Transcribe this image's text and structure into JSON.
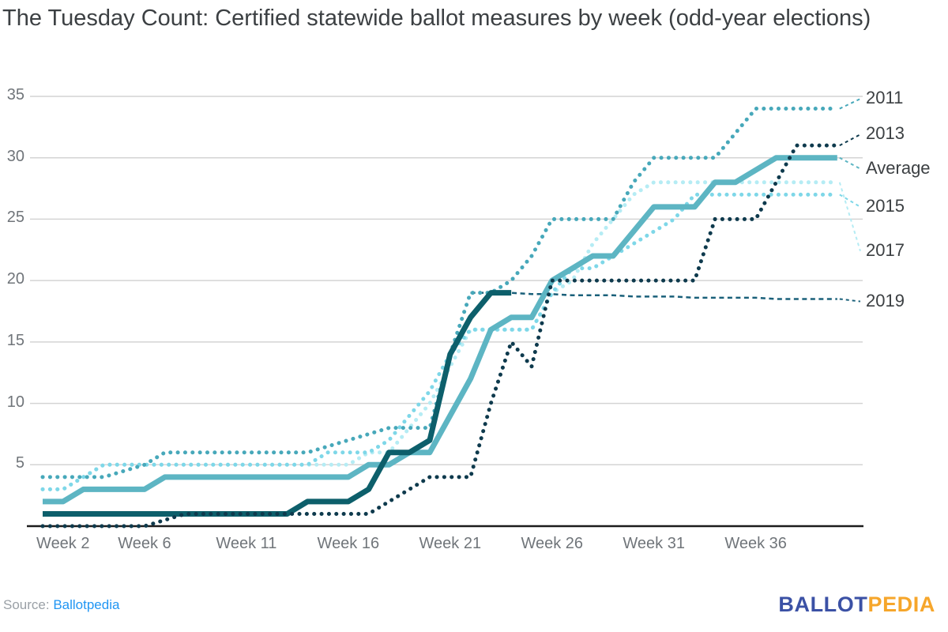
{
  "header": {
    "title": "The Tuesday Count: Certified statewide ballot measures by week (odd-year elections)"
  },
  "footer": {
    "source_label": "Source:",
    "source_link_text": "Ballotpedia",
    "source_link_color": "#2196f3",
    "logo_part1": "BALLOT",
    "logo_part2": "PEDIA",
    "logo_blue": "#3b51a5",
    "logo_orange": "#f6a62b"
  },
  "chart_data": {
    "type": "line",
    "title": "The Tuesday Count: Certified statewide ballot measures by week (odd-year elections)",
    "xlabel": "",
    "ylabel": "",
    "ylim": [
      0,
      35
    ],
    "grid": "horizontal",
    "legend_position": "right-edge-labels",
    "yticks": [
      5,
      10,
      15,
      20,
      25,
      30,
      35
    ],
    "xticks": [
      {
        "week": 2,
        "label": "Week 2"
      },
      {
        "week": 6,
        "label": "Week 6"
      },
      {
        "week": 11,
        "label": "Week 11"
      },
      {
        "week": 16,
        "label": "Week 16"
      },
      {
        "week": 21,
        "label": "Week 21"
      },
      {
        "week": 26,
        "label": "Week 26"
      },
      {
        "week": 31,
        "label": "Week 31"
      },
      {
        "week": 36,
        "label": "Week 36"
      }
    ],
    "x_weeks": [
      1,
      2,
      3,
      4,
      5,
      6,
      7,
      8,
      9,
      10,
      11,
      12,
      13,
      14,
      15,
      16,
      17,
      18,
      19,
      20,
      21,
      22,
      23,
      24,
      25,
      26,
      27,
      28,
      29,
      30,
      31,
      32,
      33,
      34,
      35,
      36,
      37,
      38,
      39,
      40
    ],
    "series": [
      {
        "id": "2019",
        "name": "2019",
        "end_label": "2019",
        "end_label_value": 18.3,
        "color": "#1a607a",
        "style": "dashed",
        "width": 2.5,
        "values": [
          null,
          null,
          null,
          null,
          null,
          null,
          null,
          null,
          null,
          null,
          null,
          null,
          null,
          null,
          null,
          null,
          null,
          null,
          null,
          null,
          null,
          19,
          19,
          19,
          18.9,
          18.9,
          18.8,
          18.8,
          18.8,
          18.7,
          18.7,
          18.7,
          18.6,
          18.6,
          18.6,
          18.6,
          18.5,
          18.5,
          18.5,
          18.5
        ]
      },
      {
        "id": "2017",
        "name": "2017",
        "end_label": "2017",
        "end_label_value": 22.4,
        "color": "#b5ecf4",
        "style": "dotted",
        "width": 5,
        "values": [
          3,
          3,
          4,
          5,
          5,
          5,
          5,
          5,
          5,
          5,
          5,
          5,
          5,
          5,
          5,
          5,
          6,
          6,
          8,
          10,
          13,
          16,
          16,
          16,
          16,
          19,
          20,
          23,
          25,
          27,
          28,
          28,
          28,
          28,
          28,
          28,
          28,
          28,
          28,
          28
        ]
      },
      {
        "id": "2015",
        "name": "2015",
        "end_label": "2015",
        "end_label_value": 26,
        "color": "#7ed7e8",
        "style": "dotted",
        "width": 5,
        "values": [
          3,
          3,
          4,
          5,
          5,
          5,
          5,
          5,
          5,
          5,
          5,
          5,
          5,
          5,
          6,
          6,
          6,
          7,
          9,
          11,
          14,
          16,
          16,
          16,
          16,
          19,
          21,
          21,
          22,
          23,
          24,
          25,
          27,
          27,
          27,
          27,
          27,
          27,
          27,
          27
        ]
      },
      {
        "id": "2011",
        "name": "2011",
        "end_label": "2011",
        "end_label_value": 34.8,
        "color": "#47a8ba",
        "style": "dotted",
        "width": 5,
        "values": [
          4,
          4,
          4,
          4,
          4.5,
          5,
          6,
          6,
          6,
          6,
          6,
          6,
          6,
          6,
          6.5,
          7,
          7.5,
          8,
          8,
          8,
          14,
          19,
          19,
          20,
          22,
          25,
          25,
          25,
          25,
          28,
          30,
          30,
          30,
          30,
          32,
          34,
          34,
          34,
          34,
          34
        ]
      },
      {
        "id": "average",
        "name": "Average",
        "end_label": "Average",
        "end_label_value": 29.1,
        "color": "#5db5c3",
        "style": "solid",
        "width": 7,
        "values": [
          2,
          2,
          3,
          3,
          3,
          3,
          4,
          4,
          4,
          4,
          4,
          4,
          4,
          4,
          4,
          4,
          5,
          5,
          6,
          6,
          9,
          12,
          16,
          17,
          17,
          20,
          21,
          22,
          22,
          24,
          26,
          26,
          26,
          28,
          28,
          29,
          30,
          30,
          30,
          30
        ]
      },
      {
        "id": "current-year",
        "name": "",
        "end_label": "",
        "end_label_value": null,
        "color": "#0d5f6b",
        "style": "solid",
        "width": 7,
        "values": [
          1,
          1,
          1,
          1,
          1,
          1,
          1,
          1,
          1,
          1,
          1,
          1,
          1,
          2,
          2,
          2,
          3,
          6,
          6,
          7,
          14,
          17,
          19,
          19,
          null,
          null,
          null,
          null,
          null,
          null,
          null,
          null,
          null,
          null,
          null,
          null,
          null,
          null,
          null,
          null
        ]
      },
      {
        "id": "2013",
        "name": "2013",
        "end_label": "2013",
        "end_label_value": 31.9,
        "color": "#0e3a4d",
        "style": "dotted",
        "width": 5,
        "values": [
          0,
          0,
          0,
          0,
          0,
          0,
          0.5,
          1,
          1,
          1,
          1,
          1,
          1,
          1,
          1,
          1,
          1,
          2,
          3,
          4,
          4,
          4,
          10,
          15,
          13,
          20,
          20,
          20,
          20,
          20,
          20,
          20,
          20,
          25,
          25,
          25,
          28,
          31,
          31,
          31
        ]
      }
    ],
    "axis_color": "#1c1c1c",
    "gridline_color": "#d4d4d4",
    "tick_label_color": "#70757a"
  }
}
